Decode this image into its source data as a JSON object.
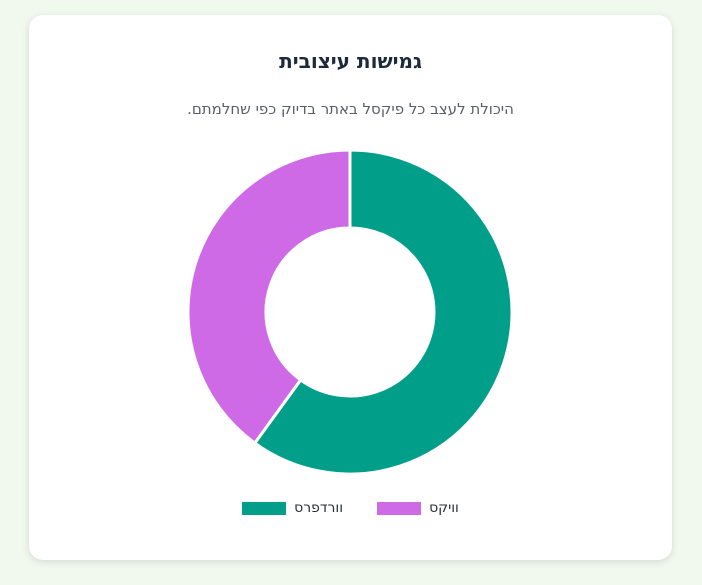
{
  "card": {
    "title": "גמישות עיצובית",
    "subtitle": "היכולת לעצב כל פיקסל באתר בדיוק כפי שחלמתם."
  },
  "chart_data": {
    "type": "pie",
    "donut": true,
    "categories": [
      "וורדפרס",
      "וויקס"
    ],
    "values": [
      60,
      40
    ],
    "colors": [
      "#019e89",
      "#cf6ae6"
    ],
    "legend": "bottom"
  }
}
